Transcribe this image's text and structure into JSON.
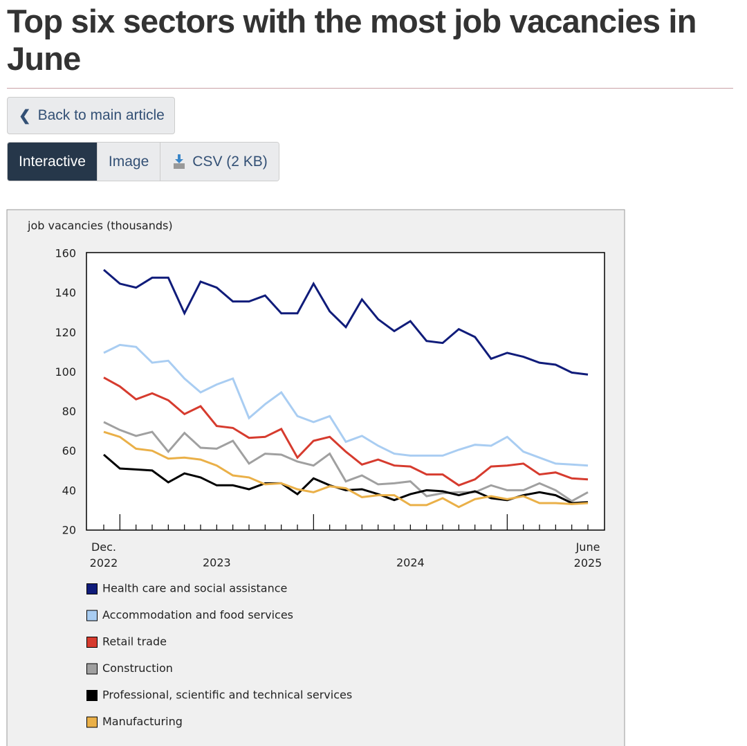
{
  "header": {
    "title": "Top six sectors with the most job vacancies in June"
  },
  "nav": {
    "back": "Back to main article",
    "tabs": [
      "Interactive",
      "Image",
      "CSV (2 KB)"
    ]
  },
  "chart_data": {
    "type": "line",
    "y_label": "job vacancies (thousands)",
    "categories": [
      "Dec. 2022",
      null,
      null,
      null,
      null,
      null,
      null,
      "2023",
      null,
      null,
      null,
      null,
      null,
      null,
      null,
      null,
      null,
      null,
      null,
      "2024",
      null,
      null,
      null,
      null,
      null,
      null,
      null,
      null,
      null,
      null,
      "June 2025"
    ],
    "ylim": [
      20,
      160
    ],
    "yticks": [
      20,
      40,
      60,
      80,
      100,
      120,
      140,
      160
    ],
    "grid": false,
    "series": [
      {
        "name": "Health care and social assistance",
        "color": "#101c7a",
        "values": [
          152,
          145,
          143,
          148,
          148,
          130,
          146,
          143,
          136,
          136,
          139,
          130,
          130,
          145,
          131,
          123,
          137,
          127,
          121,
          126,
          116,
          115,
          122,
          118,
          107,
          110,
          108,
          105,
          104,
          100,
          99
        ]
      },
      {
        "name": "Accommodation and food services",
        "color": "#a9cdf2",
        "values": [
          110,
          114,
          113,
          105,
          106,
          97,
          90,
          94,
          97,
          77,
          84,
          90,
          78,
          75,
          78,
          65,
          68,
          63,
          59,
          58,
          58,
          58,
          61,
          63.5,
          63,
          67.5,
          60,
          57,
          54,
          53.5,
          53
        ]
      },
      {
        "name": "Retail trade",
        "color": "#d63b2e",
        "values": [
          97.5,
          93,
          86.5,
          89.5,
          86,
          79,
          83,
          73,
          72,
          67,
          67.5,
          71.5,
          57,
          65.5,
          67.5,
          60,
          53.5,
          56,
          53,
          52.5,
          48.5,
          48.5,
          43,
          46,
          52.5,
          53,
          54,
          48.5,
          49.5,
          46.5,
          46
        ]
      },
      {
        "name": "Construction",
        "color": "#a0a0a0",
        "values": [
          75,
          71,
          68,
          70,
          60,
          69.5,
          62,
          61.5,
          65.5,
          54,
          59,
          58.5,
          55,
          53,
          59,
          45,
          48,
          43.5,
          44,
          45,
          37.5,
          39,
          39.5,
          39.5,
          43,
          40.5,
          40.5,
          44,
          40.5,
          35,
          39.5
        ]
      },
      {
        "name": "Professional, scientific and technical services",
        "color": "#000000",
        "values": [
          58.5,
          51.5,
          51,
          50.5,
          44.5,
          49,
          47,
          43,
          43,
          41,
          44,
          44,
          38.5,
          46.5,
          43,
          40.5,
          41,
          38.5,
          35.5,
          38.5,
          40.5,
          40,
          38,
          40,
          36.5,
          35.5,
          38,
          39.5,
          38,
          34,
          34.5
        ]
      },
      {
        "name": "Manufacturing",
        "color": "#eab048",
        "values": [
          70,
          67.5,
          61.5,
          60.5,
          56.5,
          57,
          56,
          53,
          48,
          47,
          43.5,
          44,
          41,
          39.5,
          42.5,
          41.5,
          37,
          38,
          38,
          33,
          33,
          36.5,
          32,
          36,
          37.5,
          36,
          37.5,
          34,
          34,
          33.5,
          34
        ]
      }
    ]
  }
}
